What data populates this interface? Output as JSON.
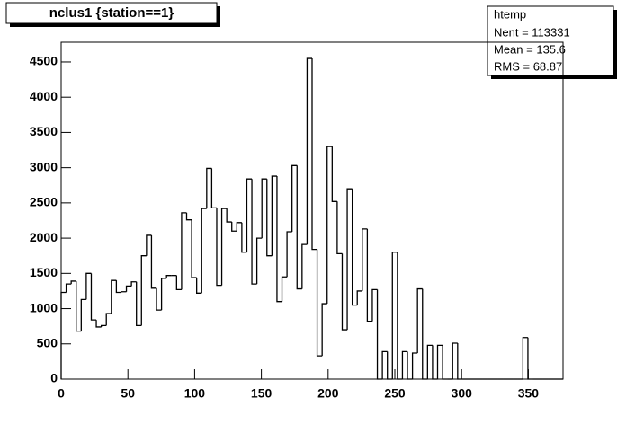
{
  "chart_data": {
    "type": "histogram",
    "title": "nclus1 {station==1}",
    "stats": {
      "name": "htemp",
      "lines": [
        "Nent = 113331",
        "Mean  =  135.6",
        "RMS   =  68.87"
      ]
    },
    "bins": [
      0,
      3.76,
      7.52,
      11.28,
      15.04,
      18.8,
      22.56,
      26.32,
      30.08,
      33.84,
      37.6,
      41.36,
      45.12,
      48.88,
      52.64,
      56.4,
      60.16,
      63.92,
      67.68,
      71.44,
      75.2,
      78.96,
      82.72,
      86.48,
      90.24,
      94,
      97.76,
      101.52,
      105.28,
      109.04,
      112.8,
      116.56,
      120.32,
      124.08,
      127.84,
      131.6,
      135.36,
      139.12,
      142.88,
      146.64,
      150.4,
      154.16,
      157.92,
      161.68,
      165.44,
      169.2,
      172.96,
      176.72,
      180.48,
      184.24,
      188,
      191.76,
      195.52,
      199.28,
      203.04,
      206.8,
      210.56,
      214.32,
      218.08,
      221.84,
      225.6,
      229.36,
      233.12,
      236.88,
      240.64,
      244.4,
      248.16,
      251.92,
      255.68,
      259.44,
      263.2,
      266.96,
      270.72,
      274.48,
      278.24,
      282,
      285.76,
      289.52,
      293.28,
      297.04,
      300.8,
      304.56,
      308.32,
      312.08,
      315.84,
      319.6,
      323.36,
      327.12,
      330.88,
      334.64,
      338.4,
      342.16,
      345.92,
      349.68,
      353.44,
      357.2,
      360.96,
      364.72,
      368.48,
      372.24,
      376
    ],
    "values": [
      1230,
      1350,
      1390,
      680,
      1130,
      1500,
      840,
      740,
      760,
      930,
      1400,
      1230,
      1240,
      1320,
      1380,
      760,
      1750,
      2040,
      1290,
      980,
      1430,
      1470,
      1470,
      1270,
      2360,
      2260,
      1440,
      1220,
      2420,
      2990,
      2430,
      1330,
      2420,
      2230,
      2100,
      2220,
      1800,
      2840,
      1350,
      2000,
      2840,
      1750,
      2880,
      1100,
      1450,
      2090,
      3030,
      1280,
      1910,
      4550,
      1840,
      330,
      1070,
      3300,
      2520,
      1780,
      700,
      2700,
      1050,
      1250,
      2130,
      820,
      1270,
      0,
      390,
      0,
      1800,
      0,
      390,
      0,
      370,
      1280,
      0,
      480,
      0,
      480,
      0,
      0,
      510,
      0,
      0,
      0,
      0,
      0,
      0,
      0,
      0,
      0,
      0,
      0,
      0,
      0,
      590,
      0,
      0,
      0,
      0,
      0,
      0,
      0,
      0
    ],
    "color": "#000000",
    "xlim": [
      0,
      376
    ],
    "xticks": [
      0,
      50,
      100,
      150,
      200,
      250,
      300,
      350
    ],
    "ylim": [
      0,
      4780
    ],
    "yticks": [
      0,
      500,
      1000,
      1500,
      2000,
      2500,
      3000,
      3500,
      4000,
      4500
    ]
  }
}
